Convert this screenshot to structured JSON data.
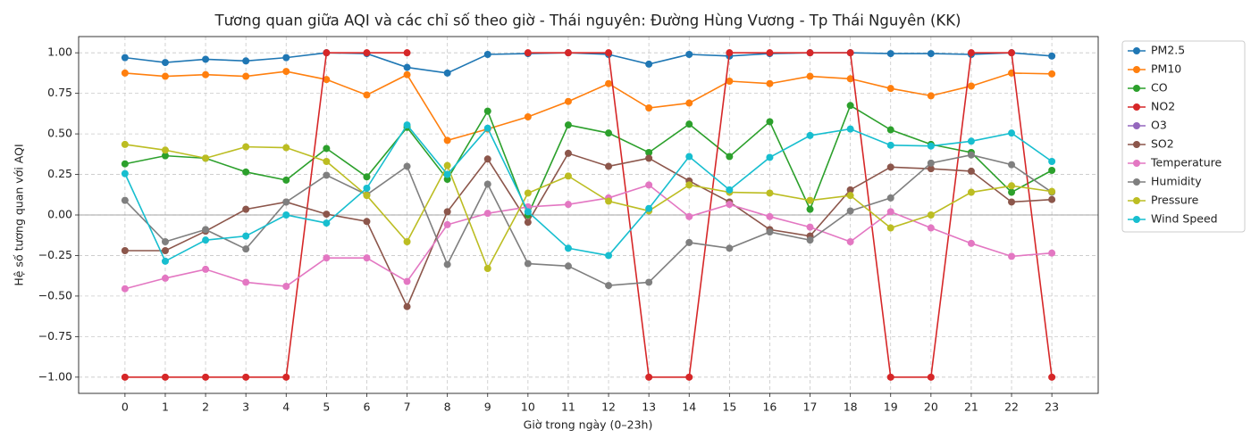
{
  "chart_data": {
    "type": "line",
    "title": "Tương quan giữa AQI và các chỉ số theo giờ - Thái nguyên: Đường Hùng Vương - Tp Thái Nguyên (KK)",
    "xlabel": "Giờ trong ngày (0–23h)",
    "ylabel": "Hệ số tương quan với AQI",
    "x": [
      0,
      1,
      2,
      3,
      4,
      5,
      6,
      7,
      8,
      9,
      10,
      11,
      12,
      13,
      14,
      15,
      16,
      17,
      18,
      19,
      20,
      21,
      22,
      23
    ],
    "xlim": [
      -1.15,
      24.15
    ],
    "xticks": [
      0,
      1,
      2,
      3,
      4,
      5,
      6,
      7,
      8,
      9,
      10,
      11,
      12,
      13,
      14,
      15,
      16,
      17,
      18,
      19,
      20,
      21,
      22,
      23
    ],
    "ylim": [
      -1.1,
      1.1
    ],
    "yticks": [
      {
        "value": -1,
        "label": "−1.00"
      },
      {
        "value": -0.75,
        "label": "−0.75"
      },
      {
        "value": -0.5,
        "label": "−0.50"
      },
      {
        "value": -0.25,
        "label": "−0.25"
      },
      {
        "value": 0,
        "label": "0.00"
      },
      {
        "value": 0.25,
        "label": "0.25"
      },
      {
        "value": 0.5,
        "label": "0.50"
      },
      {
        "value": 0.75,
        "label": "0.75"
      },
      {
        "value": 1,
        "label": "1.00"
      }
    ],
    "hline": 0,
    "grid": true,
    "legend": "outside-upper-right",
    "series": [
      {
        "name": "PM2.5",
        "color": "#1f77b4",
        "values": [
          0.97,
          0.94,
          0.96,
          0.95,
          0.97,
          1.0,
          0.995,
          0.91,
          0.875,
          0.99,
          0.995,
          1.0,
          0.99,
          0.93,
          0.99,
          0.98,
          0.995,
          1.0,
          1.0,
          0.995,
          0.995,
          0.99,
          1.0,
          0.98
        ]
      },
      {
        "name": "PM10",
        "color": "#ff7f0e",
        "values": [
          0.875,
          0.855,
          0.865,
          0.855,
          0.885,
          0.835,
          0.74,
          0.865,
          0.46,
          0.53,
          0.605,
          0.7,
          0.81,
          0.66,
          0.69,
          0.825,
          0.81,
          0.855,
          0.84,
          0.78,
          0.735,
          0.795,
          0.875,
          0.87
        ]
      },
      {
        "name": "CO",
        "color": "#2ca02c",
        "values": [
          0.315,
          0.365,
          0.35,
          0.265,
          0.215,
          0.41,
          0.235,
          0.54,
          0.22,
          0.64,
          0.0,
          0.555,
          0.505,
          0.385,
          0.56,
          0.36,
          0.575,
          0.035,
          0.675,
          0.525,
          0.435,
          0.385,
          0.14,
          0.275
        ]
      },
      {
        "name": "NO2",
        "color": "#d62728",
        "values": [
          -1,
          -1,
          -1,
          -1,
          -1,
          1,
          1,
          1,
          null,
          null,
          1,
          1,
          1,
          -1,
          -1,
          1,
          1,
          1,
          1,
          -1,
          -1,
          1,
          1,
          -1
        ]
      },
      {
        "name": "O3",
        "color": "#9467bd",
        "values": [
          null,
          null,
          null,
          null,
          null,
          null,
          null,
          null,
          null,
          null,
          null,
          null,
          null,
          null,
          null,
          null,
          null,
          null,
          null,
          null,
          null,
          null,
          null,
          null
        ]
      },
      {
        "name": "SO2",
        "color": "#8c564b",
        "values": [
          -0.22,
          -0.22,
          -0.1,
          0.035,
          0.08,
          0.005,
          -0.04,
          -0.565,
          0.02,
          0.345,
          -0.045,
          0.38,
          0.3,
          0.35,
          0.21,
          0.08,
          -0.09,
          -0.13,
          0.155,
          0.295,
          0.285,
          0.27,
          0.08,
          0.095
        ]
      },
      {
        "name": "Temperature",
        "color": "#e377c2",
        "values": [
          -0.455,
          -0.39,
          -0.335,
          -0.415,
          -0.44,
          -0.265,
          -0.265,
          -0.41,
          -0.06,
          0.01,
          0.05,
          0.065,
          0.105,
          0.185,
          -0.01,
          0.065,
          -0.01,
          -0.075,
          -0.165,
          0.02,
          -0.08,
          -0.175,
          -0.255,
          -0.235
        ]
      },
      {
        "name": "Humidity",
        "color": "#7f7f7f",
        "values": [
          0.09,
          -0.165,
          -0.09,
          -0.21,
          0.08,
          0.245,
          0.125,
          0.3,
          -0.305,
          0.19,
          -0.3,
          -0.315,
          -0.435,
          -0.415,
          -0.17,
          -0.205,
          -0.105,
          -0.155,
          0.025,
          0.105,
          0.32,
          0.37,
          0.31,
          0.14
        ]
      },
      {
        "name": "Pressure",
        "color": "#bcbd22",
        "values": [
          0.435,
          0.4,
          0.35,
          0.42,
          0.415,
          0.33,
          0.12,
          -0.165,
          0.305,
          -0.33,
          0.135,
          0.24,
          0.085,
          0.025,
          0.185,
          0.14,
          0.135,
          0.09,
          0.12,
          -0.08,
          0.0,
          0.14,
          0.18,
          0.145
        ]
      },
      {
        "name": "Wind Speed",
        "color": "#17becf",
        "values": [
          0.255,
          -0.285,
          -0.155,
          -0.13,
          0.0,
          -0.05,
          0.165,
          0.555,
          0.25,
          0.535,
          0.02,
          -0.205,
          -0.25,
          0.04,
          0.36,
          0.155,
          0.355,
          0.49,
          0.53,
          0.43,
          0.425,
          0.455,
          0.505,
          0.33
        ]
      }
    ]
  }
}
